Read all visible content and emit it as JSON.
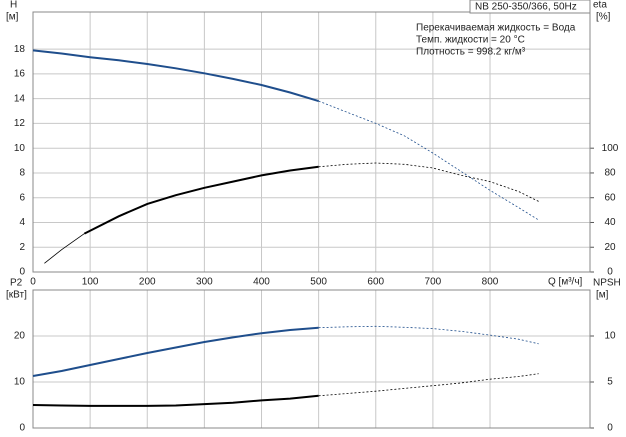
{
  "chart_data": [
    {
      "type": "line",
      "title": "NB 250-350/366, 50Hz",
      "notes": [
        "Перекачиваемая жидкость = Вода",
        "Темп. жидкости = 20 °C",
        "Плотность = 998.2 кг/м³"
      ],
      "xlabel": "Q [м³/ч]",
      "ylabel": "H",
      "yunit": "[м]",
      "y2label": "eta",
      "y2unit": "[%]",
      "xlim": [
        0,
        975
      ],
      "xticks": [
        0,
        100,
        200,
        300,
        400,
        500,
        600,
        700,
        800
      ],
      "ylim": [
        0,
        21
      ],
      "yticks": [
        0,
        2,
        4,
        6,
        8,
        10,
        12,
        14,
        16,
        18
      ],
      "y2lim": [
        0,
        210
      ],
      "y2ticks": [
        0,
        20,
        40,
        60,
        80,
        100
      ],
      "grid": true,
      "series": [
        {
          "color": "#1f4e8c",
          "solid_range": [
            0,
            500
          ],
          "x": [
            0,
            50,
            100,
            150,
            200,
            250,
            300,
            350,
            400,
            450,
            500,
            550,
            600,
            650,
            700,
            750,
            800,
            850,
            885
          ],
          "values": [
            17.9,
            17.65,
            17.35,
            17.1,
            16.8,
            16.45,
            16.05,
            15.6,
            15.1,
            14.5,
            13.8,
            12.9,
            12.0,
            11.0,
            9.6,
            8.1,
            6.6,
            5.2,
            4.2
          ]
        },
        {
          "color": "#000000",
          "axis": "y2",
          "solid_range": [
            90,
            500
          ],
          "x": [
            20,
            50,
            90,
            150,
            200,
            250,
            300,
            350,
            400,
            450,
            500,
            550,
            600,
            650,
            700,
            750,
            800,
            850,
            885
          ],
          "values": [
            7,
            18,
            31,
            45,
            55,
            62,
            68,
            73,
            78,
            82,
            85,
            87,
            88,
            87,
            84,
            78,
            73,
            65,
            57
          ]
        }
      ]
    },
    {
      "type": "line",
      "ylabel": "P2",
      "yunit": "[кВт]",
      "y2label": "NPSH",
      "y2unit": "[м]",
      "xlim": [
        0,
        975
      ],
      "ylim": [
        0,
        30
      ],
      "yticks": [
        0,
        10,
        20
      ],
      "y2lim": [
        0,
        15
      ],
      "y2ticks": [
        0,
        5,
        10
      ],
      "grid": true,
      "series": [
        {
          "color": "#1f4e8c",
          "solid_range": [
            0,
            500
          ],
          "x": [
            0,
            50,
            100,
            150,
            200,
            250,
            300,
            350,
            400,
            450,
            500,
            550,
            600,
            650,
            700,
            750,
            800,
            850,
            885
          ],
          "values": [
            11.3,
            12.4,
            13.7,
            15.0,
            16.3,
            17.5,
            18.7,
            19.7,
            20.6,
            21.3,
            21.8,
            22.0,
            22.1,
            21.9,
            21.6,
            21.0,
            20.2,
            19.3,
            18.3
          ]
        },
        {
          "color": "#000000",
          "axis": "y2",
          "solid_range": [
            0,
            500
          ],
          "x": [
            0,
            50,
            100,
            150,
            200,
            250,
            300,
            350,
            400,
            450,
            500,
            550,
            600,
            650,
            700,
            750,
            800,
            850,
            885
          ],
          "values": [
            2.5,
            2.45,
            2.4,
            2.4,
            2.4,
            2.45,
            2.6,
            2.75,
            3.0,
            3.2,
            3.5,
            3.75,
            4.0,
            4.3,
            4.6,
            4.9,
            5.3,
            5.6,
            5.9
          ]
        }
      ]
    }
  ]
}
